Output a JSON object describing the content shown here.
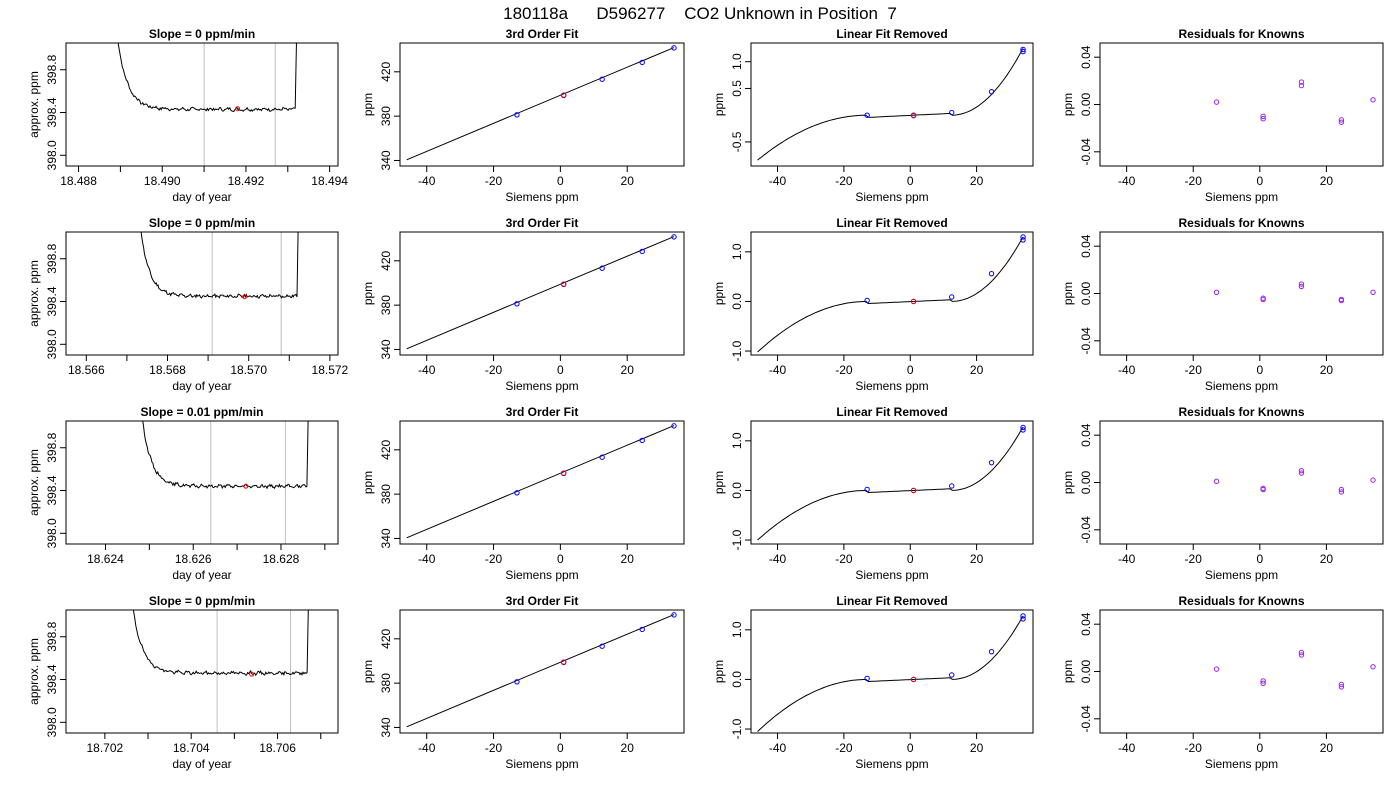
{
  "main_title": "180118a      D596277    CO2 Unknown in Position  7",
  "colors": {
    "known": "#0000ff",
    "unknown": "#ff0000",
    "residual": "#a020f0",
    "vline": "#bebebe"
  },
  "chart_data": [
    {
      "type": "line",
      "title": "Slope =  0  ppm/min",
      "xlabel": "day of year",
      "ylabel": "approx. ppm",
      "xlim": [
        18.4877,
        18.4942
      ],
      "ylim": [
        397.9,
        399.05
      ],
      "xticks": [
        {
          "v": 18.488,
          "label": "18.488"
        },
        {
          "v": 18.49,
          "label": "18.490"
        },
        {
          "v": 18.492,
          "label": "18.492"
        },
        {
          "v": 18.494,
          "label": "18.494"
        }
      ],
      "xminor": [
        18.489,
        18.491,
        18.493
      ],
      "yticks": [
        {
          "v": 398.0,
          "label": "398.0"
        },
        {
          "v": 398.4,
          "label": "398.4"
        },
        {
          "v": 398.8,
          "label": "398.8"
        }
      ],
      "vlines": [
        18.491,
        18.4927
      ],
      "marker": [
        18.4918,
        398.435
      ],
      "trace": {
        "t0": 18.4889,
        "t_end": 18.4933,
        "level": 398.43
      }
    },
    {
      "type": "line",
      "title": "3rd Order Fit",
      "xlabel": "Siemens ppm",
      "ylabel": "ppm",
      "xlim": [
        -48,
        37
      ],
      "ylim": [
        335,
        446
      ],
      "xticks": [
        {
          "v": -40,
          "label": "-40"
        },
        {
          "v": -20,
          "label": "-20"
        },
        {
          "v": 0,
          "label": "0"
        },
        {
          "v": 20,
          "label": "20"
        }
      ],
      "yticks": [
        {
          "v": 340,
          "label": "340"
        },
        {
          "v": 380,
          "label": "380"
        },
        {
          "v": 420,
          "label": "420"
        }
      ],
      "line": [
        [
          -46,
          340.6
        ],
        [
          34,
          441.9
        ]
      ],
      "knowns": [
        [
          -13,
          381.2
        ],
        [
          1,
          398.7
        ],
        [
          12.5,
          413.3
        ],
        [
          24.5,
          428.5
        ],
        [
          34,
          441.6
        ]
      ],
      "unknown": [
        [
          1,
          399.0
        ]
      ]
    },
    {
      "type": "line",
      "title": "Linear Fit Removed",
      "xlabel": "Siemens ppm",
      "ylabel": "ppm",
      "xlim": [
        -48,
        37
      ],
      "ylim": [
        -0.95,
        1.35
      ],
      "xticks": [
        {
          "v": -40,
          "label": "-40"
        },
        {
          "v": -20,
          "label": "-20"
        },
        {
          "v": 0,
          "label": "0"
        },
        {
          "v": 20,
          "label": "20"
        }
      ],
      "yticks": [
        {
          "v": -0.5,
          "label": "-0.5"
        },
        {
          "v": 0.5,
          "label": "0.5"
        },
        {
          "v": 1.0,
          "label": "1.0"
        }
      ],
      "cubic": {
        "xmin": -46,
        "xmax": 34,
        "ymin": -0.84,
        "ymax": 1.25
      },
      "knowns": [
        [
          -13,
          0.0
        ],
        [
          1,
          0.0
        ],
        [
          12.5,
          0.05
        ],
        [
          24.5,
          0.44
        ],
        [
          34,
          1.19
        ],
        [
          34,
          1.23
        ]
      ],
      "unknown": [
        [
          1,
          -0.01
        ]
      ]
    },
    {
      "type": "scatter",
      "title": "Residuals for Knowns",
      "xlabel": "Siemens ppm",
      "ylabel": "ppm",
      "xlim": [
        -48,
        37
      ],
      "ylim": [
        -0.052,
        0.052
      ],
      "xticks": [
        {
          "v": -40,
          "label": "-40"
        },
        {
          "v": -20,
          "label": "-20"
        },
        {
          "v": 0,
          "label": "0"
        },
        {
          "v": 20,
          "label": "20"
        }
      ],
      "yticks": [
        {
          "v": -0.04,
          "label": "-0.04"
        },
        {
          "v": 0.0,
          "label": "0.00"
        },
        {
          "v": 0.04,
          "label": "0.04"
        }
      ],
      "points": [
        [
          -13,
          0.002
        ],
        [
          1,
          -0.01
        ],
        [
          1,
          -0.012
        ],
        [
          12.5,
          0.016
        ],
        [
          12.5,
          0.019
        ],
        [
          24.5,
          -0.013
        ],
        [
          24.5,
          -0.015
        ],
        [
          34,
          0.004
        ]
      ]
    },
    {
      "type": "line",
      "title": "Slope =  0  ppm/min",
      "xlabel": "day of year",
      "ylabel": "approx. ppm",
      "xlim": [
        18.5655,
        18.5722
      ],
      "ylim": [
        397.9,
        399.05
      ],
      "xticks": [
        {
          "v": 18.566,
          "label": "18.566"
        },
        {
          "v": 18.568,
          "label": "18.568"
        },
        {
          "v": 18.57,
          "label": "18.570"
        },
        {
          "v": 18.572,
          "label": "18.572"
        }
      ],
      "xminor": [
        18.567,
        18.569,
        18.571
      ],
      "yticks": [
        {
          "v": 398.0,
          "label": "398.0"
        },
        {
          "v": 398.4,
          "label": "398.4"
        },
        {
          "v": 398.8,
          "label": "398.8"
        }
      ],
      "vlines": [
        18.5691,
        18.5708
      ],
      "marker": [
        18.5699,
        398.445
      ],
      "trace": {
        "t0": 18.5673,
        "t_end": 18.5713,
        "level": 398.45
      }
    },
    {
      "type": "line",
      "title": "3rd Order Fit",
      "xlabel": "Siemens ppm",
      "ylabel": "ppm",
      "xlim": [
        -48,
        37
      ],
      "ylim": [
        335,
        446
      ],
      "xticks": [
        {
          "v": -40,
          "label": "-40"
        },
        {
          "v": -20,
          "label": "-20"
        },
        {
          "v": 0,
          "label": "0"
        },
        {
          "v": 20,
          "label": "20"
        }
      ],
      "yticks": [
        {
          "v": 340,
          "label": "340"
        },
        {
          "v": 380,
          "label": "380"
        },
        {
          "v": 420,
          "label": "420"
        }
      ],
      "line": [
        [
          -46,
          340.6
        ],
        [
          34,
          441.9
        ]
      ],
      "knowns": [
        [
          -13,
          381.2
        ],
        [
          1,
          398.7
        ],
        [
          12.5,
          413.3
        ],
        [
          24.5,
          428.5
        ],
        [
          34,
          441.6
        ]
      ],
      "unknown": [
        [
          1,
          399.0
        ]
      ]
    },
    {
      "type": "line",
      "title": "Linear Fit Removed",
      "xlabel": "Siemens ppm",
      "ylabel": "ppm",
      "xlim": [
        -48,
        37
      ],
      "ylim": [
        -1.08,
        1.4
      ],
      "xticks": [
        {
          "v": -40,
          "label": "-40"
        },
        {
          "v": -20,
          "label": "-20"
        },
        {
          "v": 0,
          "label": "0"
        },
        {
          "v": 20,
          "label": "20"
        }
      ],
      "yticks": [
        {
          "v": -1.0,
          "label": "-1.0"
        },
        {
          "v": 0.0,
          "label": "0.0"
        },
        {
          "v": 1.0,
          "label": "1.0"
        }
      ],
      "cubic": {
        "xmin": -46,
        "xmax": 34,
        "ymin": -1.02,
        "ymax": 1.3
      },
      "knowns": [
        [
          -13,
          0.02
        ],
        [
          1,
          0.0
        ],
        [
          12.5,
          0.09
        ],
        [
          24.5,
          0.56
        ],
        [
          34,
          1.24
        ],
        [
          34,
          1.3
        ]
      ],
      "unknown": [
        [
          1,
          0.0
        ]
      ]
    },
    {
      "type": "scatter",
      "title": "Residuals for Knowns",
      "xlabel": "Siemens ppm",
      "ylabel": "ppm",
      "xlim": [
        -48,
        37
      ],
      "ylim": [
        -0.052,
        0.052
      ],
      "xticks": [
        {
          "v": -40,
          "label": "-40"
        },
        {
          "v": -20,
          "label": "-20"
        },
        {
          "v": 0,
          "label": "0"
        },
        {
          "v": 20,
          "label": "20"
        }
      ],
      "yticks": [
        {
          "v": -0.04,
          "label": "-0.04"
        },
        {
          "v": 0.0,
          "label": "0.00"
        },
        {
          "v": 0.04,
          "label": "0.04"
        }
      ],
      "points": [
        [
          -13,
          0.001
        ],
        [
          1,
          -0.004
        ],
        [
          1,
          -0.005
        ],
        [
          12.5,
          0.006
        ],
        [
          12.5,
          0.008
        ],
        [
          24.5,
          -0.005
        ],
        [
          24.5,
          -0.006
        ],
        [
          34,
          0.001
        ]
      ]
    },
    {
      "type": "line",
      "title": "Slope =  0.01  ppm/min",
      "xlabel": "day of year",
      "ylabel": "approx. ppm",
      "xlim": [
        18.6231,
        18.6293
      ],
      "ylim": [
        397.9,
        399.05
      ],
      "xticks": [
        {
          "v": 18.624,
          "label": "18.624"
        },
        {
          "v": 18.626,
          "label": "18.626"
        },
        {
          "v": 18.628,
          "label": "18.628"
        }
      ],
      "xminor": [
        18.625,
        18.627,
        18.629
      ],
      "yticks": [
        {
          "v": 398.0,
          "label": "398.0"
        },
        {
          "v": 398.4,
          "label": "398.4"
        },
        {
          "v": 398.8,
          "label": "398.8"
        }
      ],
      "vlines": [
        18.6264,
        18.6281
      ],
      "marker": [
        18.6272,
        398.44
      ],
      "trace": {
        "t0": 18.6248,
        "t_end": 18.6287,
        "level": 398.44
      }
    },
    {
      "type": "line",
      "title": "3rd Order Fit",
      "xlabel": "Siemens ppm",
      "ylabel": "ppm",
      "xlim": [
        -48,
        37
      ],
      "ylim": [
        335,
        446
      ],
      "xticks": [
        {
          "v": -40,
          "label": "-40"
        },
        {
          "v": -20,
          "label": "-20"
        },
        {
          "v": 0,
          "label": "0"
        },
        {
          "v": 20,
          "label": "20"
        }
      ],
      "yticks": [
        {
          "v": 340,
          "label": "340"
        },
        {
          "v": 380,
          "label": "380"
        },
        {
          "v": 420,
          "label": "420"
        }
      ],
      "line": [
        [
          -46,
          340.6
        ],
        [
          34,
          441.9
        ]
      ],
      "knowns": [
        [
          -13,
          381.2
        ],
        [
          1,
          398.7
        ],
        [
          12.5,
          413.3
        ],
        [
          24.5,
          428.5
        ],
        [
          34,
          441.6
        ]
      ],
      "unknown": [
        [
          1,
          399.0
        ]
      ]
    },
    {
      "type": "line",
      "title": "Linear Fit Removed",
      "xlabel": "Siemens ppm",
      "ylabel": "ppm",
      "xlim": [
        -48,
        37
      ],
      "ylim": [
        -1.08,
        1.4
      ],
      "xticks": [
        {
          "v": -40,
          "label": "-40"
        },
        {
          "v": -20,
          "label": "-20"
        },
        {
          "v": 0,
          "label": "0"
        },
        {
          "v": 20,
          "label": "20"
        }
      ],
      "yticks": [
        {
          "v": -1.0,
          "label": "-1.0"
        },
        {
          "v": 0.0,
          "label": "0.0"
        },
        {
          "v": 1.0,
          "label": "1.0"
        }
      ],
      "cubic": {
        "xmin": -46,
        "xmax": 34,
        "ymin": -1.0,
        "ymax": 1.28
      },
      "knowns": [
        [
          -13,
          0.02
        ],
        [
          1,
          0.0
        ],
        [
          12.5,
          0.09
        ],
        [
          24.5,
          0.56
        ],
        [
          34,
          1.22
        ],
        [
          34,
          1.27
        ]
      ],
      "unknown": [
        [
          1,
          0.0
        ]
      ]
    },
    {
      "type": "scatter",
      "title": "Residuals for Knowns",
      "xlabel": "Siemens ppm",
      "ylabel": "ppm",
      "xlim": [
        -48,
        37
      ],
      "ylim": [
        -0.052,
        0.052
      ],
      "xticks": [
        {
          "v": -40,
          "label": "-40"
        },
        {
          "v": -20,
          "label": "-20"
        },
        {
          "v": 0,
          "label": "0"
        },
        {
          "v": 20,
          "label": "20"
        }
      ],
      "yticks": [
        {
          "v": -0.04,
          "label": "-0.04"
        },
        {
          "v": 0.0,
          "label": "0.00"
        },
        {
          "v": 0.04,
          "label": "0.04"
        }
      ],
      "points": [
        [
          -13,
          0.001
        ],
        [
          1,
          -0.005
        ],
        [
          1,
          -0.006
        ],
        [
          12.5,
          0.008
        ],
        [
          12.5,
          0.01
        ],
        [
          24.5,
          -0.006
        ],
        [
          24.5,
          -0.008
        ],
        [
          34,
          0.002
        ]
      ]
    },
    {
      "type": "line",
      "title": "Slope =  0  ppm/min",
      "xlabel": "day of year",
      "ylabel": "approx. ppm",
      "xlim": [
        18.7011,
        18.7074
      ],
      "ylim": [
        397.9,
        399.05
      ],
      "xticks": [
        {
          "v": 18.702,
          "label": "18.702"
        },
        {
          "v": 18.704,
          "label": "18.704"
        },
        {
          "v": 18.706,
          "label": "18.706"
        }
      ],
      "xminor": [
        18.703,
        18.705,
        18.707
      ],
      "yticks": [
        {
          "v": 398.0,
          "label": "398.0"
        },
        {
          "v": 398.4,
          "label": "398.4"
        },
        {
          "v": 398.8,
          "label": "398.8"
        }
      ],
      "vlines": [
        18.7046,
        18.7063
      ],
      "marker": [
        18.7054,
        398.45
      ],
      "trace": {
        "t0": 18.7026,
        "t_end": 18.7068,
        "level": 398.46
      }
    },
    {
      "type": "line",
      "title": "3rd Order Fit",
      "xlabel": "Siemens ppm",
      "ylabel": "ppm",
      "xlim": [
        -48,
        37
      ],
      "ylim": [
        335,
        446
      ],
      "xticks": [
        {
          "v": -40,
          "label": "-40"
        },
        {
          "v": -20,
          "label": "-20"
        },
        {
          "v": 0,
          "label": "0"
        },
        {
          "v": 20,
          "label": "20"
        }
      ],
      "yticks": [
        {
          "v": 340,
          "label": "340"
        },
        {
          "v": 380,
          "label": "380"
        },
        {
          "v": 420,
          "label": "420"
        }
      ],
      "line": [
        [
          -46,
          340.6
        ],
        [
          34,
          441.9
        ]
      ],
      "knowns": [
        [
          -13,
          381.2
        ],
        [
          1,
          398.7
        ],
        [
          12.5,
          413.3
        ],
        [
          24.5,
          428.5
        ],
        [
          34,
          441.6
        ]
      ],
      "unknown": [
        [
          1,
          399.0
        ]
      ]
    },
    {
      "type": "line",
      "title": "Linear Fit Removed",
      "xlabel": "Siemens ppm",
      "ylabel": "ppm",
      "xlim": [
        -48,
        37
      ],
      "ylim": [
        -1.08,
        1.4
      ],
      "xticks": [
        {
          "v": -40,
          "label": "-40"
        },
        {
          "v": -20,
          "label": "-20"
        },
        {
          "v": 0,
          "label": "0"
        },
        {
          "v": 20,
          "label": "20"
        }
      ],
      "yticks": [
        {
          "v": -1.0,
          "label": "-1.0"
        },
        {
          "v": 0.0,
          "label": "0.0"
        },
        {
          "v": 1.0,
          "label": "1.0"
        }
      ],
      "cubic": {
        "xmin": -46,
        "xmax": 34,
        "ymin": -1.05,
        "ymax": 1.28
      },
      "knowns": [
        [
          -13,
          0.02
        ],
        [
          1,
          0.0
        ],
        [
          12.5,
          0.09
        ],
        [
          24.5,
          0.56
        ],
        [
          34,
          1.22
        ],
        [
          34,
          1.28
        ]
      ],
      "unknown": [
        [
          1,
          0.0
        ]
      ]
    },
    {
      "type": "scatter",
      "title": "Residuals for Knowns",
      "xlabel": "Siemens ppm",
      "ylabel": "ppm",
      "xlim": [
        -48,
        37
      ],
      "ylim": [
        -0.052,
        0.052
      ],
      "xticks": [
        {
          "v": -40,
          "label": "-40"
        },
        {
          "v": -20,
          "label": "-20"
        },
        {
          "v": 0,
          "label": "0"
        },
        {
          "v": 20,
          "label": "20"
        }
      ],
      "yticks": [
        {
          "v": -0.04,
          "label": "-0.04"
        },
        {
          "v": 0.0,
          "label": "0.00"
        },
        {
          "v": 0.04,
          "label": "0.04"
        }
      ],
      "points": [
        [
          -13,
          0.002
        ],
        [
          1,
          -0.008
        ],
        [
          1,
          -0.01
        ],
        [
          12.5,
          0.014
        ],
        [
          12.5,
          0.016
        ],
        [
          24.5,
          -0.011
        ],
        [
          24.5,
          -0.013
        ],
        [
          34,
          0.004
        ]
      ]
    }
  ]
}
